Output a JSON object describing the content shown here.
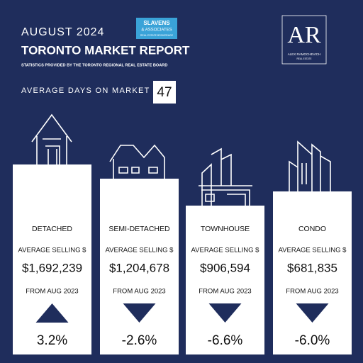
{
  "header": {
    "month": "AUGUST 2024",
    "title": "TORONTO MARKET REPORT",
    "subtitle": "STATISTICS PROVIDED BY THE TORONTO REGIONAL REAL ESTATE BOARD",
    "brokerage": {
      "name": "SLAVENS",
      "name2": "& ASSOCIATES",
      "tagline": "REAL ESTATE BROKERAGE"
    },
    "agent": {
      "monogram": "AR",
      "name": "ALEX RAMOCHEVICH",
      "tagline": "REAL ESTATE"
    }
  },
  "days_on_market": {
    "label": "AVERAGE DAYS ON MARKET",
    "value": "47"
  },
  "cards": [
    {
      "name": "DETACHED",
      "price_label": "AVERAGE SELLING $",
      "price": "$1,692,239",
      "period": "FROM AUG 2023",
      "trend": "up",
      "change": "3.2%"
    },
    {
      "name": "SEMI-DETACHED",
      "price_label": "AVERAGE SELLING $",
      "price": "$1,204,678",
      "period": "FROM AUG 2023",
      "trend": "down",
      "change": "-2.6%"
    },
    {
      "name": "TOWNHOUSE",
      "price_label": "AVERAGE SELLING $",
      "price": "$906,594",
      "period": "FROM AUG 2023",
      "trend": "down",
      "change": "-6.6%"
    },
    {
      "name": "CONDO",
      "price_label": "AVERAGE SELLING $",
      "price": "$681,835",
      "period": "FROM AUG 2023",
      "trend": "down",
      "change": "-6.0%"
    }
  ]
}
